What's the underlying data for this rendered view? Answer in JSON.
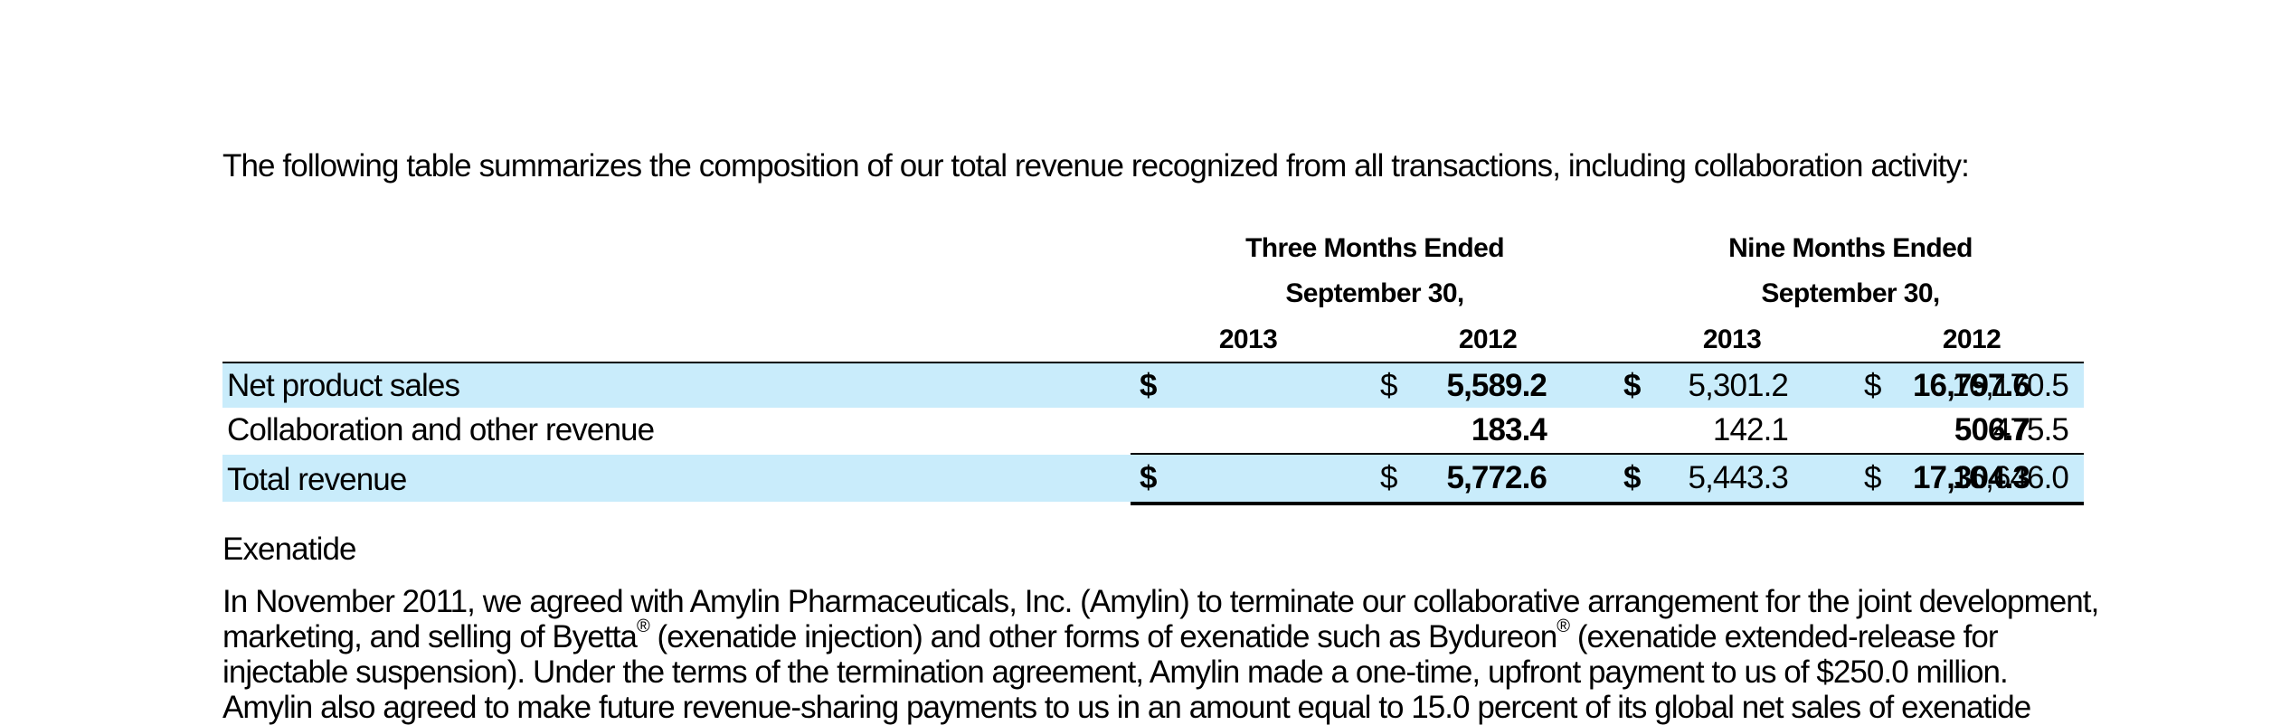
{
  "intro": "The following table summarizes the composition of our total revenue recognized from all transactions, including collaboration activity:",
  "table": {
    "group_headers": [
      {
        "line1": "Three Months Ended",
        "line2": "September 30,"
      },
      {
        "line1": "Nine Months Ended",
        "line2": "September 30,"
      }
    ],
    "years": [
      "2013",
      "2012",
      "2013",
      "2012"
    ],
    "rows": [
      {
        "label": "Net product sales",
        "cur": [
          "$",
          "$",
          "$",
          "$"
        ],
        "values": [
          "5,589.2",
          "5,301.2",
          "16,797.6",
          "16,170.5"
        ]
      },
      {
        "label": "Collaboration and other revenue",
        "cur": [
          "",
          "",
          "",
          ""
        ],
        "values": [
          "183.4",
          "142.1",
          "506.7",
          "475.5"
        ]
      },
      {
        "label": "Total revenue",
        "cur": [
          "$",
          "$",
          "$",
          "$"
        ],
        "values": [
          "5,772.6",
          "5,443.3",
          "17,304.3",
          "16,646.0"
        ]
      }
    ]
  },
  "section_title": "Exenatide",
  "paragraph": {
    "line1": "In November 2011, we agreed with Amylin Pharmaceuticals, Inc. (Amylin) to terminate our collaborative arrangement for the joint development,",
    "line2_a": "marketing, and selling of Byetta",
    "reg": "®",
    "line2_b": " (exenatide injection) and other forms of exenatide such as Bydureon",
    "line2_c": " (exenatide extended-release for",
    "line3": "injectable suspension). Under the terms of the termination agreement, Amylin made a one-time, upfront payment to us of $250.0 million.",
    "line4": "Amylin also agreed to make future revenue-sharing payments to us in an amount equal to 15.0 percent of its global net sales of exenatide"
  }
}
